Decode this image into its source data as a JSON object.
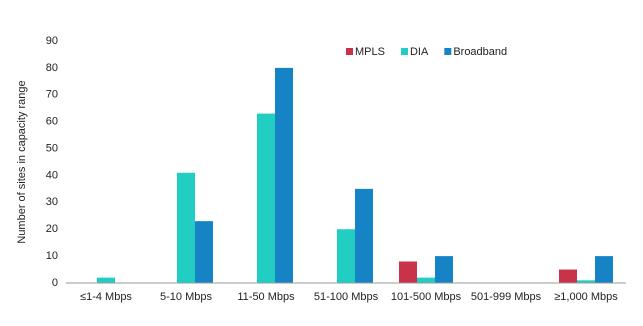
{
  "chart_data": {
    "type": "bar",
    "y_label": "Number of sites in capacity range",
    "categories": [
      "≤1-4 Mbps",
      "5-10 Mbps",
      "11-50 Mbps",
      "51-100 Mbps",
      "101-500 Mbps",
      "501-999 Mbps",
      "≥1,000 Mbps"
    ],
    "series": [
      {
        "name": "MPLS",
        "color": "#c8334a",
        "values": [
          0,
          0,
          0,
          0,
          8,
          0,
          5
        ]
      },
      {
        "name": "DIA",
        "color": "#22cdc1",
        "values": [
          2,
          41,
          63,
          20,
          2,
          0,
          1
        ]
      },
      {
        "name": "Broadband",
        "color": "#1583c6",
        "values": [
          0,
          23,
          80,
          35,
          10,
          0,
          10
        ]
      }
    ],
    "ylim": [
      0,
      90
    ],
    "yticks": [
      0,
      10,
      20,
      30,
      40,
      50,
      60,
      70,
      80,
      90
    ],
    "grid": false,
    "legend": "top-right"
  }
}
